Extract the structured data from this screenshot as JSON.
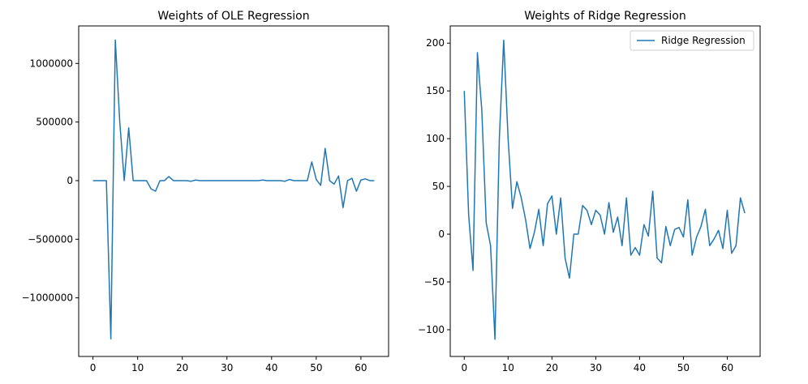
{
  "colors": {
    "series": "#1f77b4"
  },
  "chart_data": [
    {
      "type": "line",
      "title": "Weights of OLE Regression",
      "xlabel": "",
      "ylabel": "",
      "xlim": [
        -3.2,
        66.2
      ],
      "ylim": [
        -1500000,
        1320000
      ],
      "xticks": [
        0,
        10,
        20,
        30,
        40,
        50,
        60
      ],
      "yticks": [
        -1000000,
        -500000,
        0,
        500000,
        1000000
      ],
      "ytick_labels": [
        "−1000000",
        "−500000",
        "0",
        "500000",
        "1000000"
      ],
      "legend": null,
      "series": [
        {
          "values": [
            0,
            0,
            0,
            0,
            -1350000,
            1200000,
            500000,
            0,
            450000,
            0,
            0,
            0,
            0,
            -70000,
            -90000,
            0,
            0,
            35000,
            0,
            0,
            0,
            0,
            -5000,
            5000,
            0,
            0,
            0,
            0,
            0,
            0,
            0,
            0,
            0,
            0,
            0,
            0,
            0,
            0,
            5000,
            0,
            0,
            0,
            0,
            -5000,
            10000,
            0,
            0,
            0,
            0,
            160000,
            10000,
            -40000,
            275000,
            0,
            -30000,
            40000,
            -230000,
            0,
            20000,
            -90000,
            5000,
            15000,
            0,
            0
          ]
        }
      ]
    },
    {
      "type": "line",
      "title": "Weights of Ridge Regression",
      "xlabel": "",
      "ylabel": "",
      "xlim": [
        -3.2,
        67.5
      ],
      "ylim": [
        -128,
        218
      ],
      "xticks": [
        0,
        10,
        20,
        30,
        40,
        50,
        60
      ],
      "yticks": [
        -100,
        -50,
        0,
        50,
        100,
        150,
        200
      ],
      "ytick_labels": [
        "−100",
        "−50",
        "0",
        "50",
        "100",
        "150",
        "200"
      ],
      "legend": "upper right",
      "series": [
        {
          "name": "Ridge Regression",
          "values": [
            150,
            20,
            -38,
            190,
            130,
            12,
            -12,
            -110,
            100,
            203,
            100,
            27,
            55,
            38,
            15,
            -15,
            2,
            26,
            -12,
            32,
            40,
            0,
            38,
            -25,
            -46,
            0,
            0,
            30,
            25,
            10,
            25,
            20,
            0,
            33,
            2,
            18,
            -12,
            38,
            -22,
            -14,
            -22,
            10,
            -2,
            45,
            -25,
            -30,
            8,
            -12,
            5,
            7,
            -3,
            36,
            -22,
            -3,
            8,
            26,
            -12,
            -5,
            4,
            -15,
            25,
            -20,
            -12,
            38,
            22
          ]
        }
      ]
    }
  ]
}
